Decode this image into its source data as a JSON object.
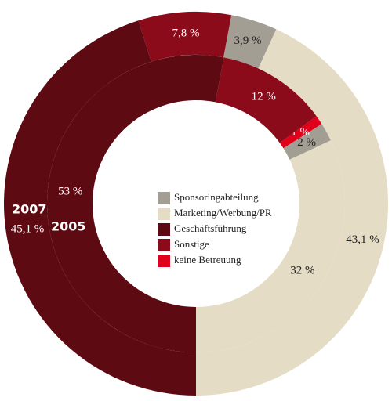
{
  "chart_data": {
    "type": "donut",
    "categories": [
      "Sponsoringabteilung",
      "Marketing/Werbung/PR",
      "Geschäftsführung",
      "Sonstige",
      "keine Betreuung"
    ],
    "colors": [
      "#a39e93",
      "#e5dcc6",
      "#5e0a12",
      "#8c0b1a",
      "#e0001a"
    ],
    "series": [
      {
        "name": "2007",
        "values": [
          3.9,
          43.1,
          45.1,
          7.8,
          null
        ],
        "value_labels": [
          "3,9 %",
          "43,1 %",
          "45,1 %",
          "7,8 %",
          null
        ]
      },
      {
        "name": "2005",
        "values": [
          2,
          32,
          53,
          12,
          1
        ],
        "value_labels": [
          "2 %",
          "32 %",
          "53 %",
          "12 %",
          "1 %"
        ]
      }
    ]
  }
}
